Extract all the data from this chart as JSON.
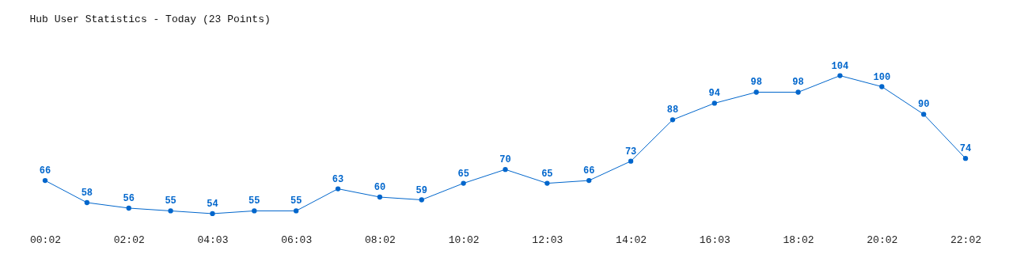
{
  "chart_data": {
    "type": "line",
    "title": "Hub User Statistics - Today (23 Points)",
    "categories": [
      "00:02",
      null,
      "02:02",
      null,
      "04:03",
      null,
      "06:03",
      null,
      "08:02",
      null,
      "10:02",
      null,
      "12:03",
      null,
      "14:02",
      null,
      "16:03",
      null,
      "18:02",
      null,
      "20:02",
      null,
      "22:02"
    ],
    "values": [
      66,
      58,
      56,
      55,
      54,
      55,
      55,
      63,
      60,
      59,
      65,
      70,
      65,
      66,
      73,
      88,
      94,
      98,
      98,
      104,
      100,
      90,
      74
    ],
    "color": "#0066cc",
    "marker": "circle",
    "line_style": "solid",
    "data_labels": true
  }
}
